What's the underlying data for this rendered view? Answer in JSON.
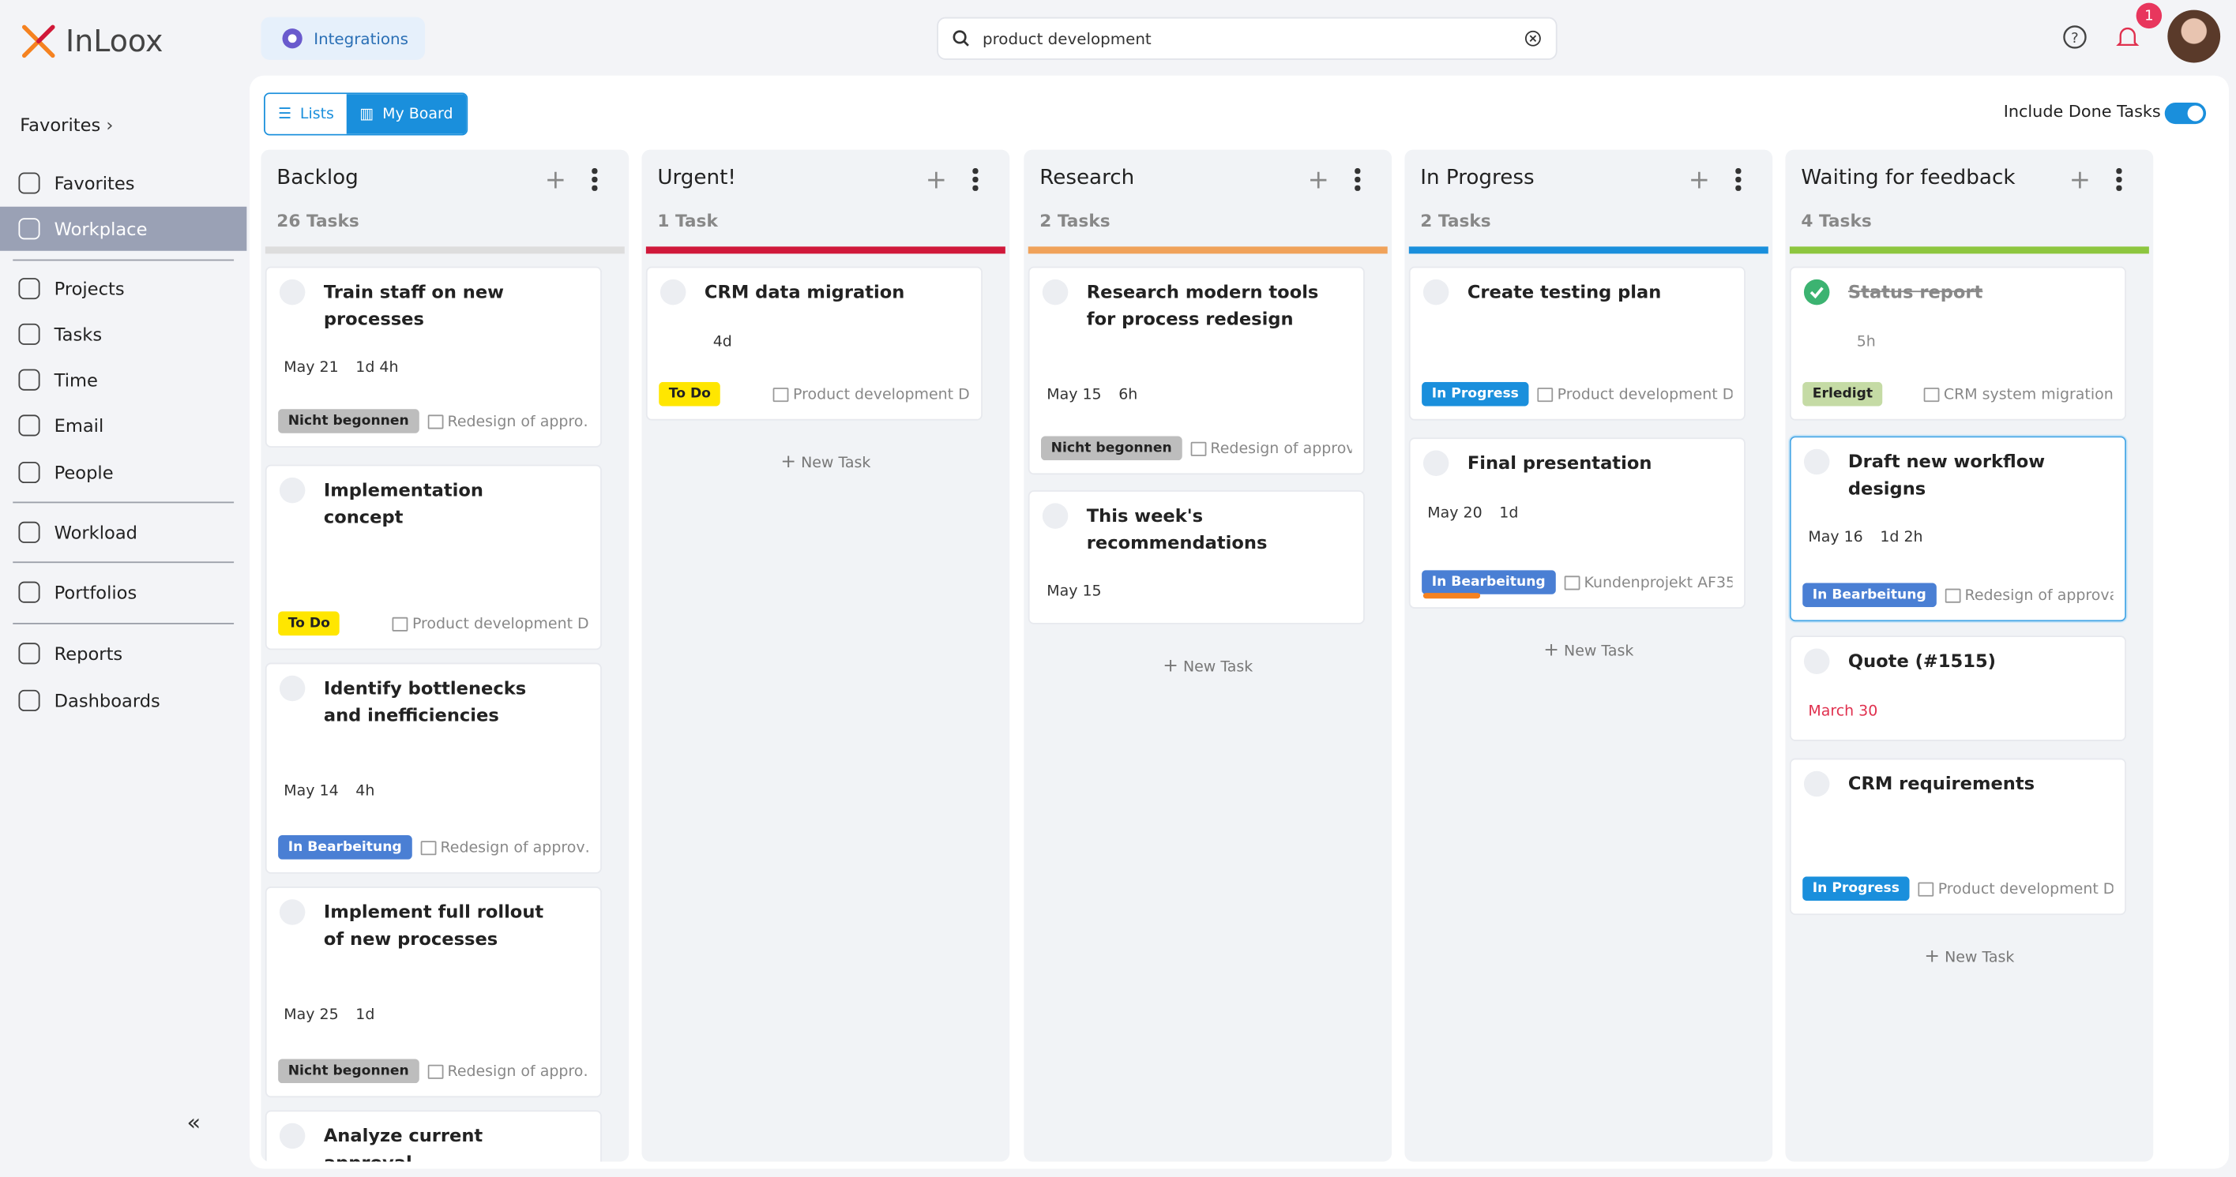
{
  "app": {
    "logo": "InLoox",
    "integrations": "Integrations",
    "search": "product development",
    "notifications": "1"
  },
  "sidebar": {
    "favorites_header": "Favorites",
    "items": [
      "Favorites",
      "Workplace",
      "Projects",
      "Tasks",
      "Time",
      "Email",
      "People",
      "Workload",
      "Portfolios",
      "Reports",
      "Dashboards"
    ]
  },
  "toolbar": {
    "views": [
      "Lists",
      "My Board"
    ],
    "include_done": "Include Done Tasks"
  },
  "new_task": "New Task",
  "columns": [
    {
      "title": "Backlog",
      "count": "26 Tasks",
      "color": "#dddddd",
      "cards": [
        {
          "title": "Train staff on new processes",
          "date": "May 21",
          "effort": "1d 4h",
          "status": "Nicht begonnen",
          "status_color": "#bdbdbd",
          "project": "Redesign of appro…"
        },
        {
          "title": "Implementation concept",
          "status": "To Do",
          "status_color": "#ffe600",
          "project": "Product development D"
        },
        {
          "title": "Identify bottlenecks and inefficiencies",
          "date": "May 14",
          "effort": "4h",
          "status": "In Bearbeitung",
          "status_color": "#4a7fd4",
          "project": "Redesign of approv…"
        },
        {
          "title": "Implement full rollout of new processes",
          "date": "May 25",
          "effort": "1d",
          "status": "Nicht begonnen",
          "status_color": "#bdbdbd",
          "project": "Redesign of appro…"
        },
        {
          "title": "Analyze current approval"
        }
      ]
    },
    {
      "title": "Urgent!",
      "count": "1 Task",
      "color": "#d0183a",
      "cards": [
        {
          "title": "CRM data migration",
          "effort": "4d",
          "status": "To Do",
          "status_color": "#ffe600",
          "project": "Product development D"
        }
      ]
    },
    {
      "title": "Research",
      "count": "2 Tasks",
      "color": "#f0a25a",
      "cards": [
        {
          "title": "Research modern tools for process redesign",
          "date": "May 15",
          "effort": "6h",
          "status": "Nicht begonnen",
          "status_color": "#bdbdbd",
          "project": "Redesign of approval…"
        },
        {
          "title": "This week's recommendations",
          "date": "May 15"
        }
      ]
    },
    {
      "title": "In Progress",
      "count": "2 Tasks",
      "color": "#1a8fdc",
      "cards": [
        {
          "title": "Create testing plan",
          "status": "In Progress",
          "status_color": "#1a8fdc",
          "project": "Product development D"
        },
        {
          "title": "Final presentation",
          "date": "May 20",
          "effort": "1d",
          "status": "In Bearbeitung",
          "status_color": "#4a7fd4",
          "project": "Kundenprojekt AF35"
        }
      ]
    },
    {
      "title": "Waiting for feedback",
      "count": "4 Tasks",
      "color": "#8dc63f",
      "cards": [
        {
          "title": "Status report",
          "effort": "5h",
          "status": "Erledigt",
          "status_color": "#c5dba5",
          "project": "CRM system migration"
        },
        {
          "title": "Draft new workflow designs",
          "date": "May 16",
          "effort": "1d 2h",
          "status": "In Bearbeitung",
          "status_color": "#4a7fd4",
          "project": "Redesign of approval …"
        },
        {
          "title": "Quote (#1515)",
          "due": "March 30"
        },
        {
          "title": "CRM requirements",
          "status": "In Progress",
          "status_color": "#1a8fdc",
          "project": "Product development D"
        }
      ]
    }
  ]
}
